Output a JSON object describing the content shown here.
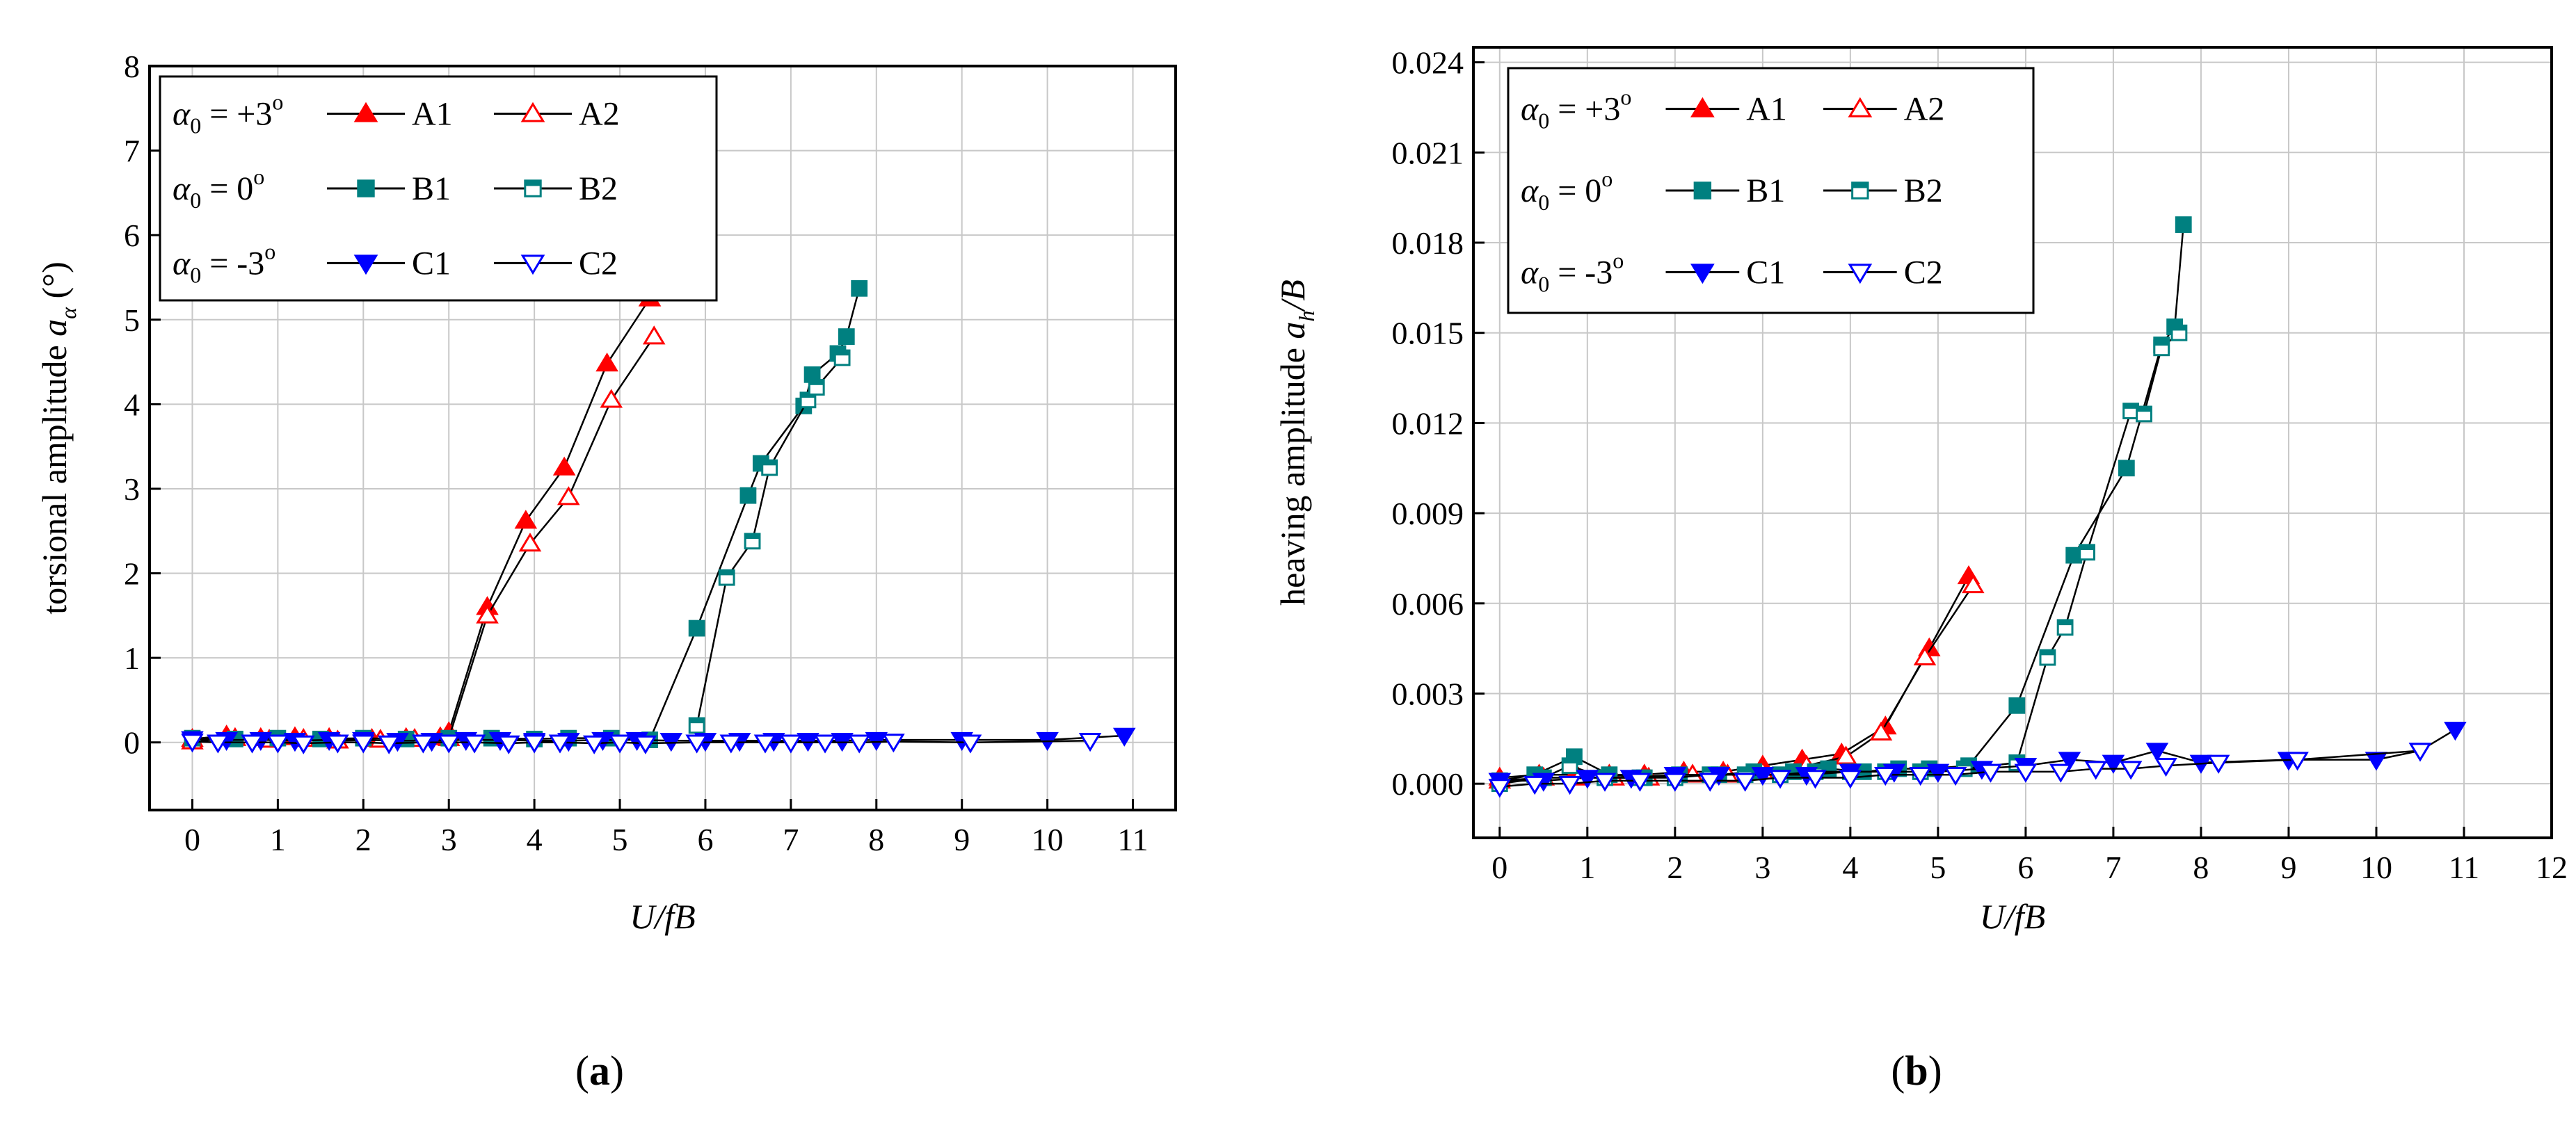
{
  "colors": {
    "A": "#ff0000",
    "B": "#008080",
    "C": "#0000ff",
    "line": "#000000",
    "grid": "#c8c8c8"
  },
  "chart_data": [
    {
      "type": "line",
      "caption_letter": "a",
      "ylabel_prefix": "torsional amplitude ",
      "ylabel_symbol": "a",
      "ylabel_sub": "α",
      "ylabel_suffix": " (°)",
      "xlabel": "U/fB",
      "xlim": [
        -0.5,
        11.5
      ],
      "ylim": [
        -0.8,
        8
      ],
      "xticks": [
        0,
        1,
        2,
        3,
        4,
        5,
        6,
        7,
        8,
        9,
        10,
        11
      ],
      "yticks": [
        0,
        1,
        2,
        3,
        4,
        5,
        6,
        7,
        8
      ],
      "tick_labels_x": [
        "0",
        "1",
        "2",
        "3",
        "4",
        "5",
        "6",
        "7",
        "8",
        "9",
        "10",
        "11"
      ],
      "tick_labels_y": [
        "0",
        "1",
        "2",
        "3",
        "4",
        "5",
        "6",
        "7",
        "8"
      ],
      "legend": [
        {
          "alpha": "α",
          "sub": "0",
          "text": " = +3",
          "sup": "o",
          "filled": "A1",
          "hollow": "A2",
          "group": "A",
          "marker": "tri"
        },
        {
          "alpha": "α",
          "sub": "0",
          "text": " =  0",
          "sup": "o",
          "filled": "B1",
          "hollow": "B2",
          "group": "B",
          "marker": "sq"
        },
        {
          "alpha": "α",
          "sub": "0",
          "text": " = -3",
          "sup": "o",
          "filled": "C1",
          "hollow": "C2",
          "group": "C",
          "marker": "dtri"
        }
      ],
      "series": [
        {
          "name": "A1",
          "group": "A",
          "marker": "tri",
          "filled": true,
          "x": [
            0,
            0.4,
            0.8,
            1.2,
            1.6,
            2.1,
            2.5,
            2.9,
            3.0,
            3.45,
            3.9,
            4.35,
            4.85,
            5.35
          ],
          "y": [
            0.04,
            0.08,
            0.05,
            0.06,
            0.05,
            0.04,
            0.05,
            0.06,
            0.12,
            1.6,
            2.62,
            3.25,
            4.48,
            5.25
          ]
        },
        {
          "name": "A2",
          "group": "A",
          "marker": "tri",
          "filled": false,
          "x": [
            0,
            0.5,
            0.9,
            1.3,
            1.7,
            2.2,
            2.6,
            3.0,
            3.45,
            3.95,
            4.4,
            4.9,
            5.4
          ],
          "y": [
            0.01,
            0.05,
            0.03,
            0.04,
            0.02,
            0.03,
            0.04,
            0.05,
            1.5,
            2.35,
            2.9,
            4.05,
            4.8
          ]
        },
        {
          "name": "B1",
          "group": "B",
          "marker": "sq",
          "filled": true,
          "x": [
            0,
            0.5,
            1.0,
            1.5,
            2.0,
            2.5,
            3.0,
            3.5,
            4.0,
            4.4,
            4.9,
            5.35,
            5.9,
            6.5,
            6.65,
            7.15,
            7.25,
            7.55,
            7.65,
            7.8
          ],
          "y": [
            0.05,
            0.04,
            0.05,
            0.04,
            0.05,
            0.04,
            0.05,
            0.05,
            0.04,
            0.05,
            0.05,
            0.03,
            1.35,
            2.92,
            3.3,
            3.98,
            4.35,
            4.6,
            4.8,
            5.37
          ],
          "join": [
            [
              0,
              12
            ],
            [
              12,
              20
            ]
          ]
        },
        {
          "name": "B2",
          "group": "B",
          "marker": "sq",
          "filled": false,
          "x": [
            5.9,
            6.25,
            6.55,
            6.75,
            7.2,
            7.3,
            7.6
          ],
          "y": [
            0.2,
            1.95,
            2.38,
            3.25,
            4.05,
            4.2,
            4.55
          ]
        },
        {
          "name": "C1",
          "group": "C",
          "marker": "dtri",
          "filled": true,
          "x": [
            0,
            0.4,
            0.8,
            1.2,
            1.6,
            2.0,
            2.4,
            2.8,
            3.2,
            3.6,
            4.0,
            4.4,
            4.8,
            5.2,
            5.6,
            6.0,
            6.4,
            6.8,
            7.2,
            7.6,
            8.0,
            9.0,
            10.0,
            10.9
          ],
          "y": [
            0.04,
            0.03,
            0.03,
            0.02,
            0.03,
            0.03,
            0.02,
            0.02,
            0.03,
            0.03,
            0.02,
            0.02,
            0.03,
            0.03,
            0.02,
            0.02,
            0.02,
            0.02,
            0.02,
            0.02,
            0.03,
            0.03,
            0.03,
            0.08
          ]
        },
        {
          "name": "C2",
          "group": "C",
          "marker": "dtri",
          "filled": false,
          "x": [
            0,
            0.3,
            0.7,
            1.0,
            1.3,
            1.7,
            2.0,
            2.3,
            2.7,
            3.0,
            3.3,
            3.7,
            4.0,
            4.3,
            4.7,
            5.0,
            5.3,
            5.9,
            6.3,
            6.7,
            7.0,
            7.4,
            7.8,
            8.2,
            9.1,
            10.5
          ],
          "y": [
            0.01,
            0.0,
            0.0,
            0.0,
            -0.01,
            0.0,
            0.0,
            -0.01,
            0.0,
            0.0,
            0.0,
            -0.01,
            0.0,
            0.0,
            -0.01,
            0.0,
            -0.01,
            0.0,
            0.0,
            0.0,
            0.0,
            0.0,
            0.0,
            0.01,
            0.0,
            0.02
          ]
        }
      ]
    },
    {
      "type": "line",
      "caption_letter": "b",
      "ylabel_prefix": "heaving amplitude ",
      "ylabel_symbol": "a",
      "ylabel_sub": "h",
      "ylabel_suffix": "/B",
      "xlabel": "U/fB",
      "xlim": [
        -0.3,
        12.0
      ],
      "ylim": [
        -0.0018,
        0.0245
      ],
      "xticks": [
        0,
        1,
        2,
        3,
        4,
        5,
        6,
        7,
        8,
        9,
        10,
        11,
        12
      ],
      "yticks": [
        0,
        0.003,
        0.006,
        0.009,
        0.012,
        0.015,
        0.018,
        0.021,
        0.024
      ],
      "tick_labels_x": [
        "0",
        "1",
        "2",
        "3",
        "4",
        "5",
        "6",
        "7",
        "8",
        "9",
        "10",
        "11",
        "12"
      ],
      "tick_labels_y": [
        "0.000",
        "0.003",
        "0.006",
        "0.009",
        "0.012",
        "0.015",
        "0.018",
        "0.021",
        "0.024"
      ],
      "legend": [
        {
          "alpha": "α",
          "sub": "0",
          "text": " = +3",
          "sup": "o",
          "filled": "A1",
          "hollow": "A2",
          "group": "A",
          "marker": "tri"
        },
        {
          "alpha": "α",
          "sub": "0",
          "text": " =  0",
          "sup": "o",
          "filled": "B1",
          "hollow": "B2",
          "group": "B",
          "marker": "sq"
        },
        {
          "alpha": "α",
          "sub": "0",
          "text": " = -3",
          "sup": "o",
          "filled": "C1",
          "hollow": "C2",
          "group": "C",
          "marker": "dtri"
        }
      ],
      "series": [
        {
          "name": "A1",
          "group": "A",
          "marker": "tri",
          "filled": true,
          "x": [
            0,
            0.45,
            0.85,
            1.25,
            1.65,
            2.1,
            2.55,
            3.0,
            3.45,
            3.9,
            4.4,
            4.9,
            5.35
          ],
          "y": [
            0.0002,
            0.0003,
            0.0003,
            0.0003,
            0.0003,
            0.0004,
            0.0004,
            0.0006,
            0.0008,
            0.001,
            0.0019,
            0.0045,
            0.0069
          ]
        },
        {
          "name": "A2",
          "group": "A",
          "marker": "tri",
          "filled": false,
          "x": [
            0,
            0.5,
            0.9,
            1.3,
            1.7,
            2.2,
            2.6,
            3.0,
            3.5,
            3.95,
            4.35,
            4.85,
            5.4
          ],
          "y": [
            0.0001,
            0.0002,
            0.0002,
            0.0002,
            0.0002,
            0.0003,
            0.0003,
            0.0004,
            0.0006,
            0.0009,
            0.0017,
            0.0042,
            0.0066
          ]
        },
        {
          "name": "B1",
          "group": "B",
          "marker": "sq",
          "filled": true,
          "x": [
            0,
            0.4,
            0.85,
            1.25,
            1.65,
            2.05,
            2.5,
            2.9,
            3.35,
            3.75,
            4.15,
            4.55,
            4.9,
            5.35,
            5.9,
            6.55,
            7.15,
            7.55,
            7.7,
            7.8
          ],
          "y": [
            0.0001,
            0.0003,
            0.0009,
            0.0003,
            0.0002,
            0.0003,
            0.0003,
            0.0004,
            0.0004,
            0.0005,
            0.0004,
            0.0005,
            0.0005,
            0.0006,
            0.0026,
            0.0076,
            0.0105,
            0.0146,
            0.0152,
            0.0186
          ]
        },
        {
          "name": "B2",
          "group": "B",
          "marker": "sq",
          "filled": false,
          "x": [
            0,
            0.5,
            0.8,
            1.2,
            1.6,
            2.0,
            2.4,
            2.8,
            3.2,
            3.6,
            4.0,
            4.4,
            4.8,
            5.3,
            5.9,
            6.25,
            6.45,
            6.7,
            7.2,
            7.35,
            7.55,
            7.75
          ],
          "y": [
            0.0,
            0.0002,
            0.0006,
            0.0002,
            0.0002,
            0.0002,
            0.0003,
            0.0003,
            0.0003,
            0.0004,
            0.0004,
            0.0004,
            0.0004,
            0.0005,
            0.0007,
            0.0042,
            0.0052,
            0.0077,
            0.0124,
            0.0123,
            0.0145,
            0.015
          ]
        },
        {
          "name": "C1",
          "group": "C",
          "marker": "dtri",
          "filled": true,
          "x": [
            0,
            0.5,
            1.0,
            1.5,
            2.0,
            2.5,
            3.0,
            3.5,
            4.0,
            4.5,
            5.0,
            5.5,
            6.0,
            6.5,
            7.0,
            7.5,
            8.0,
            9.0,
            10.0,
            10.5,
            10.9
          ],
          "y": [
            0.0001,
            0.0001,
            0.0002,
            0.0002,
            0.0003,
            0.0003,
            0.0003,
            0.0003,
            0.0004,
            0.0004,
            0.0004,
            0.0005,
            0.0006,
            0.0008,
            0.0007,
            0.0011,
            0.0007,
            0.0008,
            0.0008,
            0.0011,
            0.0018
          ]
        },
        {
          "name": "C2",
          "group": "C",
          "marker": "dtri",
          "filled": false,
          "x": [
            0,
            0.4,
            0.8,
            1.2,
            1.6,
            2.0,
            2.4,
            2.8,
            3.2,
            3.6,
            4.0,
            4.4,
            4.8,
            5.2,
            5.6,
            6.0,
            6.4,
            6.8,
            7.2,
            7.6,
            8.2,
            9.1,
            10.5
          ],
          "y": [
            -0.0001,
            0.0,
            0.0,
            0.0001,
            0.0001,
            0.0001,
            0.0001,
            0.0001,
            0.0002,
            0.0002,
            0.0002,
            0.0003,
            0.0003,
            0.0003,
            0.0004,
            0.0004,
            0.0004,
            0.0005,
            0.0005,
            0.0006,
            0.0007,
            0.0008,
            0.0011
          ]
        }
      ]
    }
  ]
}
